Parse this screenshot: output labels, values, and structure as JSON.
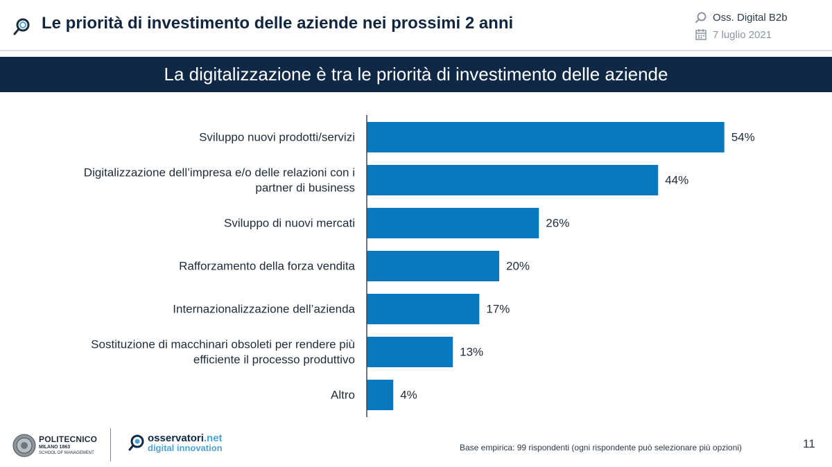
{
  "header": {
    "title": "Le priorità di investimento delle aziende nei prossimi 2 anni",
    "source": "Oss. Digital B2b",
    "date": "7 luglio 2021"
  },
  "banner": {
    "text": "La digitalizzazione è tra le priorità di investimento delle aziende"
  },
  "chart_data": {
    "type": "bar",
    "orientation": "horizontal",
    "title": "La digitalizzazione è tra le priorità di investimento delle aziende",
    "categories": [
      [
        "Sviluppo nuovi prodotti/servizi"
      ],
      [
        "Digitalizzazione dell’impresa e/o delle relazioni con i",
        "partner di business"
      ],
      [
        "Sviluppo di nuovi mercati"
      ],
      [
        "Rafforzamento della forza vendita"
      ],
      [
        "Internazionalizzazione dell’azienda"
      ],
      [
        "Sostituzione di macchinari obsoleti per rendere più",
        "efficiente il processo produttivo"
      ],
      [
        "Altro"
      ]
    ],
    "values": [
      54,
      44,
      26,
      20,
      17,
      13,
      4
    ],
    "value_labels": [
      "54%",
      "44%",
      "26%",
      "20%",
      "17%",
      "13%",
      "4%"
    ],
    "unit": "%",
    "xlim": [
      0,
      60
    ],
    "bar_color": "#0a78be",
    "grid": false,
    "legend": "none"
  },
  "footer": {
    "politecnico_name": "POLITECNICO",
    "politecnico_city": "MILANO 1863",
    "politecnico_school": "SCHOOL OF MANAGEMENT",
    "osservatori_name": "osservatori",
    "osservatori_tld": ".net",
    "osservatori_tagline": "digital innovation",
    "note": "Base empirica: 99 rispondenti (ogni rispondente può selezionare più opzioni)",
    "page_number": "11"
  },
  "colors": {
    "banner_bg": "#0f2846",
    "bar": "#0a78be",
    "accent": "#4aa3d8"
  }
}
